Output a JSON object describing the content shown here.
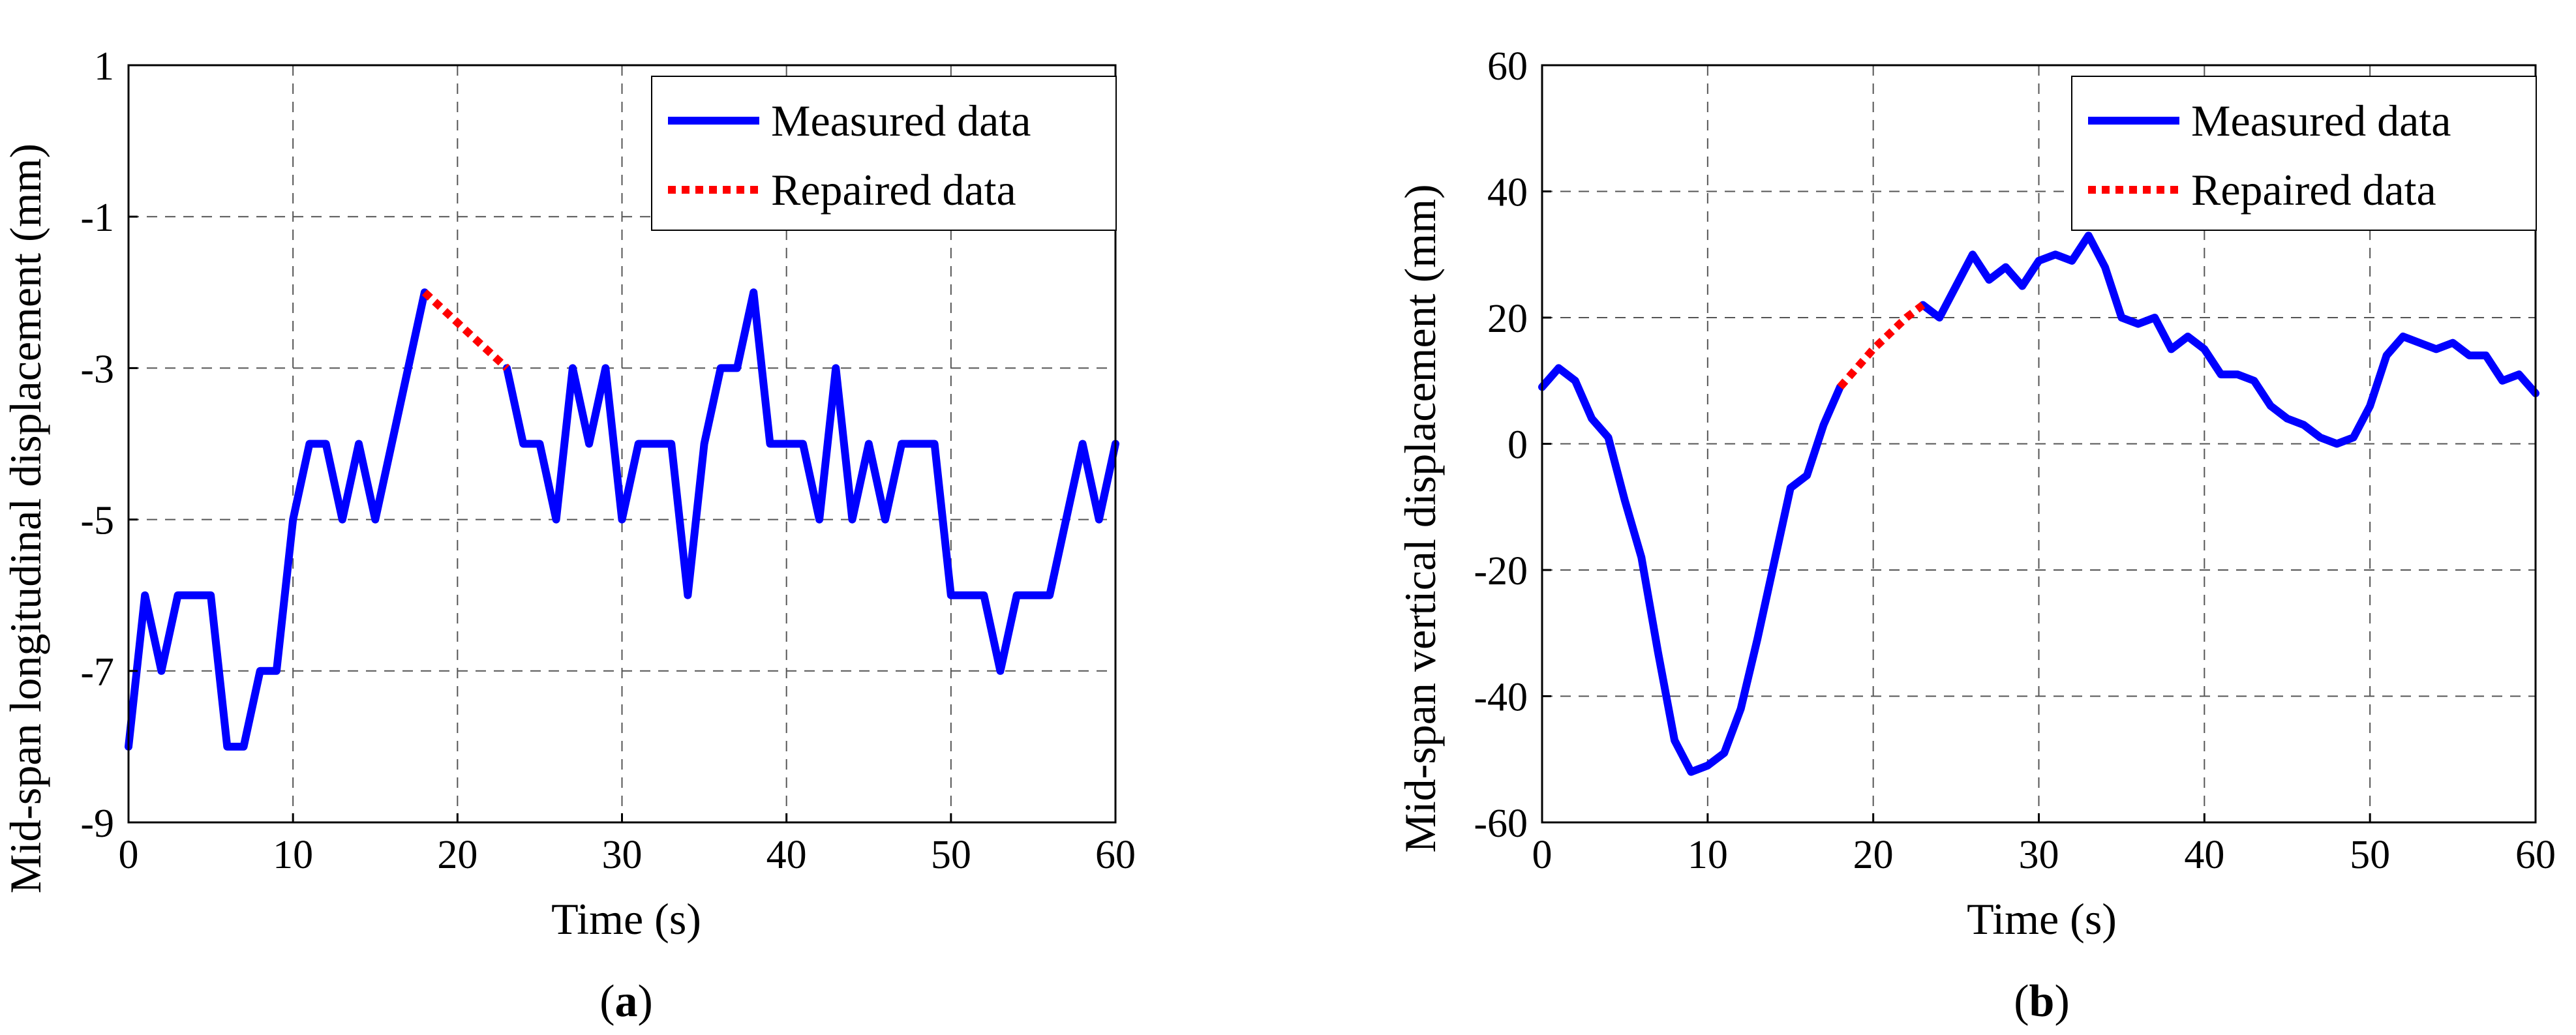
{
  "chart_data": [
    {
      "type": "line",
      "panel": "a",
      "xlabel": "Time (s)",
      "ylabel": "Mid-span longitudinal displacement (mm)",
      "xlim": [
        0,
        60
      ],
      "ylim": [
        -9,
        1
      ],
      "xticks": [
        "0",
        "10",
        "20",
        "30",
        "40",
        "50",
        "60"
      ],
      "yticks": [
        "-9",
        "-7",
        "-5",
        "-3",
        "-1",
        "1"
      ],
      "grid": true,
      "legend_position": "top-right",
      "caption": {
        "open": "(",
        "letter": "a",
        "close": ")"
      },
      "series": [
        {
          "name": "Measured data",
          "color": "#0000ff",
          "style": "solid",
          "segments": [
            [
              [
                0,
                -8
              ],
              [
                1,
                -6
              ],
              [
                2,
                -7
              ],
              [
                3,
                -6
              ],
              [
                4,
                -6
              ],
              [
                5,
                -6
              ],
              [
                6,
                -8
              ],
              [
                7,
                -8
              ],
              [
                8,
                -7
              ],
              [
                9,
                -7
              ],
              [
                10,
                -5
              ],
              [
                11,
                -4
              ],
              [
                12,
                -4
              ],
              [
                13,
                -5
              ],
              [
                14,
                -4
              ],
              [
                15,
                -5
              ],
              [
                16,
                -4
              ],
              [
                17,
                -3
              ],
              [
                18,
                -2
              ]
            ],
            [
              [
                23,
                -3
              ],
              [
                24,
                -4
              ],
              [
                25,
                -4
              ],
              [
                26,
                -5
              ],
              [
                27,
                -3
              ],
              [
                28,
                -4
              ],
              [
                29,
                -3
              ],
              [
                30,
                -5
              ],
              [
                31,
                -4
              ],
              [
                32,
                -4
              ],
              [
                33,
                -4
              ],
              [
                34,
                -6
              ],
              [
                35,
                -4
              ],
              [
                36,
                -3
              ],
              [
                37,
                -3
              ],
              [
                38,
                -2
              ],
              [
                39,
                -4
              ],
              [
                40,
                -4
              ],
              [
                41,
                -4
              ],
              [
                42,
                -5
              ],
              [
                43,
                -3
              ],
              [
                44,
                -5
              ],
              [
                45,
                -4
              ],
              [
                46,
                -5
              ],
              [
                47,
                -4
              ],
              [
                48,
                -4
              ],
              [
                49,
                -4
              ],
              [
                50,
                -6
              ],
              [
                51,
                -6
              ],
              [
                52,
                -6
              ],
              [
                53,
                -7
              ],
              [
                54,
                -6
              ],
              [
                55,
                -6
              ],
              [
                56,
                -6
              ],
              [
                57,
                -5
              ],
              [
                58,
                -4
              ],
              [
                59,
                -5
              ],
              [
                60,
                -4
              ]
            ]
          ]
        },
        {
          "name": "Repaired data",
          "color": "#ff0000",
          "style": "dotted",
          "segments": [
            [
              [
                18,
                -2
              ],
              [
                19,
                -2.2
              ],
              [
                20,
                -2.4
              ],
              [
                21,
                -2.6
              ],
              [
                22,
                -2.8
              ],
              [
                23,
                -3
              ]
            ]
          ]
        }
      ]
    },
    {
      "type": "line",
      "panel": "b",
      "xlabel": "Time (s)",
      "ylabel": "Mid-span vertical  displacement (mm)",
      "xlim": [
        0,
        60
      ],
      "ylim": [
        -60,
        60
      ],
      "xticks": [
        "0",
        "10",
        "20",
        "30",
        "40",
        "50",
        "60"
      ],
      "yticks": [
        "-60",
        "-40",
        "-20",
        "0",
        "20",
        "40",
        "60"
      ],
      "grid": true,
      "legend_position": "top-right",
      "caption": {
        "open": "(",
        "letter": "b",
        "close": ")"
      },
      "series": [
        {
          "name": "Measured data",
          "color": "#0000ff",
          "style": "solid",
          "segments": [
            [
              [
                0,
                9
              ],
              [
                1,
                12
              ],
              [
                2,
                10
              ],
              [
                3,
                4
              ],
              [
                4,
                1
              ],
              [
                5,
                -9
              ],
              [
                6,
                -18
              ],
              [
                7,
                -33
              ],
              [
                8,
                -47
              ],
              [
                9,
                -52
              ],
              [
                10,
                -51
              ],
              [
                11,
                -49
              ],
              [
                12,
                -42
              ],
              [
                13,
                -31
              ],
              [
                14,
                -19
              ],
              [
                15,
                -7
              ],
              [
                16,
                -5
              ],
              [
                17,
                3
              ],
              [
                18,
                9
              ]
            ],
            [
              [
                23,
                22
              ],
              [
                24,
                20
              ],
              [
                25,
                25
              ],
              [
                26,
                30
              ],
              [
                27,
                26
              ],
              [
                28,
                28
              ],
              [
                29,
                25
              ],
              [
                30,
                29
              ],
              [
                31,
                30
              ],
              [
                32,
                29
              ],
              [
                33,
                33
              ],
              [
                34,
                28
              ],
              [
                35,
                20
              ],
              [
                36,
                19
              ],
              [
                37,
                20
              ],
              [
                38,
                15
              ],
              [
                39,
                17
              ],
              [
                40,
                15
              ],
              [
                41,
                11
              ],
              [
                42,
                11
              ],
              [
                43,
                10
              ],
              [
                44,
                6
              ],
              [
                45,
                4
              ],
              [
                46,
                3
              ],
              [
                47,
                1
              ],
              [
                48,
                0
              ],
              [
                49,
                1
              ],
              [
                50,
                6
              ],
              [
                51,
                14
              ],
              [
                52,
                17
              ],
              [
                53,
                16
              ],
              [
                54,
                15
              ],
              [
                55,
                16
              ],
              [
                56,
                14
              ],
              [
                57,
                14
              ],
              [
                58,
                10
              ],
              [
                59,
                11
              ],
              [
                60,
                8
              ]
            ]
          ]
        },
        {
          "name": "Repaired data",
          "color": "#ff0000",
          "style": "dotted",
          "segments": [
            [
              [
                18,
                9
              ],
              [
                19,
                12
              ],
              [
                20,
                15
              ],
              [
                21,
                17.5
              ],
              [
                22,
                20
              ],
              [
                23,
                22
              ]
            ]
          ]
        }
      ]
    }
  ]
}
